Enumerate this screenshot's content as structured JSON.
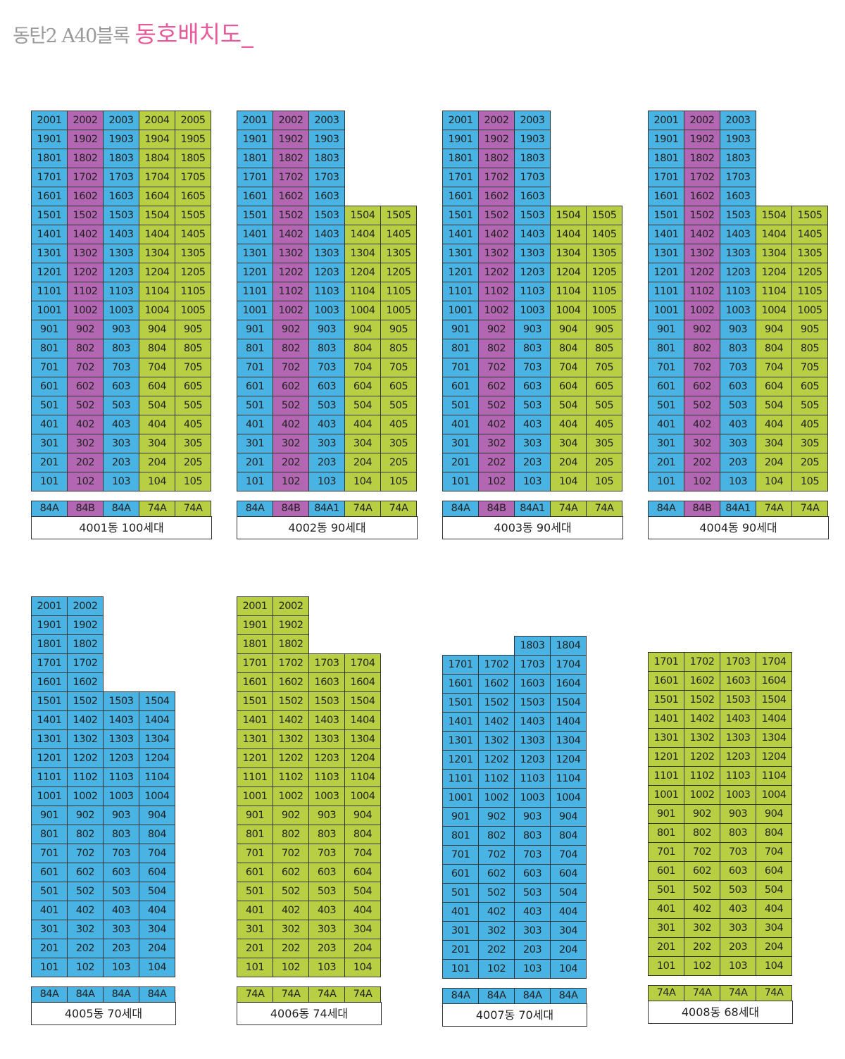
{
  "header": {
    "subtitle": "동탄2 A40블록",
    "title": "동호배치도_"
  },
  "colors": {
    "84A": "#49b3e3",
    "84B": "#b366b1",
    "84A1": "#49b3e3",
    "74A": "#b8cf44"
  },
  "buildings": [
    {
      "name": "4001동 100세대",
      "types": [
        "84A",
        "84B",
        "84A",
        "74A",
        "74A"
      ],
      "floors": [
        [
          "2001",
          "2002",
          "2003",
          "2004",
          "2005"
        ],
        [
          "1901",
          "1902",
          "1903",
          "1904",
          "1905"
        ],
        [
          "1801",
          "1802",
          "1803",
          "1804",
          "1805"
        ],
        [
          "1701",
          "1702",
          "1703",
          "1704",
          "1705"
        ],
        [
          "1601",
          "1602",
          "1603",
          "1604",
          "1605"
        ],
        [
          "1501",
          "1502",
          "1503",
          "1504",
          "1505"
        ],
        [
          "1401",
          "1402",
          "1403",
          "1404",
          "1405"
        ],
        [
          "1301",
          "1302",
          "1303",
          "1304",
          "1305"
        ],
        [
          "1201",
          "1202",
          "1203",
          "1204",
          "1205"
        ],
        [
          "1101",
          "1102",
          "1103",
          "1104",
          "1105"
        ],
        [
          "1001",
          "1002",
          "1003",
          "1004",
          "1005"
        ],
        [
          "901",
          "902",
          "903",
          "904",
          "905"
        ],
        [
          "801",
          "802",
          "803",
          "804",
          "805"
        ],
        [
          "701",
          "702",
          "703",
          "704",
          "705"
        ],
        [
          "601",
          "602",
          "603",
          "604",
          "605"
        ],
        [
          "501",
          "502",
          "503",
          "504",
          "505"
        ],
        [
          "401",
          "402",
          "403",
          "404",
          "405"
        ],
        [
          "301",
          "302",
          "303",
          "304",
          "305"
        ],
        [
          "201",
          "202",
          "203",
          "204",
          "205"
        ],
        [
          "101",
          "102",
          "103",
          "104",
          "105"
        ]
      ]
    },
    {
      "name": "4002동 90세대",
      "types": [
        "84A",
        "84B",
        "84A1",
        "74A",
        "74A"
      ],
      "floors": [
        [
          "2001",
          "2002",
          "2003",
          "",
          ""
        ],
        [
          "1901",
          "1902",
          "1903",
          "",
          ""
        ],
        [
          "1801",
          "1802",
          "1803",
          "",
          ""
        ],
        [
          "1701",
          "1702",
          "1703",
          "",
          ""
        ],
        [
          "1601",
          "1602",
          "1603",
          "",
          ""
        ],
        [
          "1501",
          "1502",
          "1503",
          "1504",
          "1505"
        ],
        [
          "1401",
          "1402",
          "1403",
          "1404",
          "1405"
        ],
        [
          "1301",
          "1302",
          "1303",
          "1304",
          "1305"
        ],
        [
          "1201",
          "1202",
          "1203",
          "1204",
          "1205"
        ],
        [
          "1101",
          "1102",
          "1103",
          "1104",
          "1105"
        ],
        [
          "1001",
          "1002",
          "1003",
          "1004",
          "1005"
        ],
        [
          "901",
          "902",
          "903",
          "904",
          "905"
        ],
        [
          "801",
          "802",
          "803",
          "804",
          "805"
        ],
        [
          "701",
          "702",
          "703",
          "704",
          "705"
        ],
        [
          "601",
          "602",
          "603",
          "604",
          "605"
        ],
        [
          "501",
          "502",
          "503",
          "504",
          "505"
        ],
        [
          "401",
          "402",
          "403",
          "404",
          "405"
        ],
        [
          "301",
          "302",
          "303",
          "304",
          "305"
        ],
        [
          "201",
          "202",
          "203",
          "204",
          "205"
        ],
        [
          "101",
          "102",
          "103",
          "104",
          "105"
        ]
      ]
    },
    {
      "name": "4003동 90세대",
      "types": [
        "84A",
        "84B",
        "84A1",
        "74A",
        "74A"
      ],
      "floors": [
        [
          "2001",
          "2002",
          "2003",
          "",
          ""
        ],
        [
          "1901",
          "1902",
          "1903",
          "",
          ""
        ],
        [
          "1801",
          "1802",
          "1803",
          "",
          ""
        ],
        [
          "1701",
          "1702",
          "1703",
          "",
          ""
        ],
        [
          "1601",
          "1602",
          "1603",
          "",
          ""
        ],
        [
          "1501",
          "1502",
          "1503",
          "1504",
          "1505"
        ],
        [
          "1401",
          "1402",
          "1403",
          "1404",
          "1405"
        ],
        [
          "1301",
          "1302",
          "1303",
          "1304",
          "1305"
        ],
        [
          "1201",
          "1202",
          "1203",
          "1204",
          "1205"
        ],
        [
          "1101",
          "1102",
          "1103",
          "1104",
          "1105"
        ],
        [
          "1001",
          "1002",
          "1003",
          "1004",
          "1005"
        ],
        [
          "901",
          "902",
          "903",
          "904",
          "905"
        ],
        [
          "801",
          "802",
          "803",
          "804",
          "805"
        ],
        [
          "701",
          "702",
          "703",
          "704",
          "705"
        ],
        [
          "601",
          "602",
          "603",
          "604",
          "605"
        ],
        [
          "501",
          "502",
          "503",
          "504",
          "505"
        ],
        [
          "401",
          "402",
          "403",
          "404",
          "405"
        ],
        [
          "301",
          "302",
          "303",
          "304",
          "305"
        ],
        [
          "201",
          "202",
          "203",
          "204",
          "205"
        ],
        [
          "101",
          "102",
          "103",
          "104",
          "105"
        ]
      ]
    },
    {
      "name": "4004동 90세대",
      "types": [
        "84A",
        "84B",
        "84A1",
        "74A",
        "74A"
      ],
      "floors": [
        [
          "2001",
          "2002",
          "2003",
          "",
          ""
        ],
        [
          "1901",
          "1902",
          "1903",
          "",
          ""
        ],
        [
          "1801",
          "1802",
          "1803",
          "",
          ""
        ],
        [
          "1701",
          "1702",
          "1703",
          "",
          ""
        ],
        [
          "1601",
          "1602",
          "1603",
          "",
          ""
        ],
        [
          "1501",
          "1502",
          "1503",
          "1504",
          "1505"
        ],
        [
          "1401",
          "1402",
          "1403",
          "1404",
          "1405"
        ],
        [
          "1301",
          "1302",
          "1303",
          "1304",
          "1305"
        ],
        [
          "1201",
          "1202",
          "1203",
          "1204",
          "1205"
        ],
        [
          "1101",
          "1102",
          "1103",
          "1104",
          "1105"
        ],
        [
          "1001",
          "1002",
          "1003",
          "1004",
          "1005"
        ],
        [
          "901",
          "902",
          "903",
          "904",
          "905"
        ],
        [
          "801",
          "802",
          "803",
          "804",
          "805"
        ],
        [
          "701",
          "702",
          "703",
          "704",
          "705"
        ],
        [
          "601",
          "602",
          "603",
          "604",
          "605"
        ],
        [
          "501",
          "502",
          "503",
          "504",
          "505"
        ],
        [
          "401",
          "402",
          "403",
          "404",
          "405"
        ],
        [
          "301",
          "302",
          "303",
          "304",
          "305"
        ],
        [
          "201",
          "202",
          "203",
          "204",
          "205"
        ],
        [
          "101",
          "102",
          "103",
          "104",
          "105"
        ]
      ]
    },
    {
      "name": "4005동 70세대",
      "types": [
        "84A",
        "84A",
        "84A",
        "84A"
      ],
      "floors": [
        [
          "2001",
          "2002",
          "",
          ""
        ],
        [
          "1901",
          "1902",
          "",
          ""
        ],
        [
          "1801",
          "1802",
          "",
          ""
        ],
        [
          "1701",
          "1702",
          "",
          ""
        ],
        [
          "1601",
          "1602",
          "",
          ""
        ],
        [
          "1501",
          "1502",
          "1503",
          "1504"
        ],
        [
          "1401",
          "1402",
          "1403",
          "1404"
        ],
        [
          "1301",
          "1302",
          "1303",
          "1304"
        ],
        [
          "1201",
          "1202",
          "1203",
          "1204"
        ],
        [
          "1101",
          "1102",
          "1103",
          "1104"
        ],
        [
          "1001",
          "1002",
          "1003",
          "1004"
        ],
        [
          "901",
          "902",
          "903",
          "904"
        ],
        [
          "801",
          "802",
          "803",
          "804"
        ],
        [
          "701",
          "702",
          "703",
          "704"
        ],
        [
          "601",
          "602",
          "603",
          "604"
        ],
        [
          "501",
          "502",
          "503",
          "504"
        ],
        [
          "401",
          "402",
          "403",
          "404"
        ],
        [
          "301",
          "302",
          "303",
          "304"
        ],
        [
          "201",
          "202",
          "203",
          "204"
        ],
        [
          "101",
          "102",
          "103",
          "104"
        ]
      ]
    },
    {
      "name": "4006동 74세대",
      "types": [
        "74A",
        "74A",
        "74A",
        "74A"
      ],
      "floors": [
        [
          "2001",
          "2002",
          "",
          ""
        ],
        [
          "1901",
          "1902",
          "",
          ""
        ],
        [
          "1801",
          "1802",
          "",
          ""
        ],
        [
          "1701",
          "1702",
          "1703",
          "1704"
        ],
        [
          "1601",
          "1602",
          "1603",
          "1604"
        ],
        [
          "1501",
          "1502",
          "1503",
          "1504"
        ],
        [
          "1401",
          "1402",
          "1403",
          "1404"
        ],
        [
          "1301",
          "1302",
          "1303",
          "1304"
        ],
        [
          "1201",
          "1202",
          "1203",
          "1204"
        ],
        [
          "1101",
          "1102",
          "1103",
          "1104"
        ],
        [
          "1001",
          "1002",
          "1003",
          "1004"
        ],
        [
          "901",
          "902",
          "903",
          "904"
        ],
        [
          "801",
          "802",
          "803",
          "804"
        ],
        [
          "701",
          "702",
          "703",
          "704"
        ],
        [
          "601",
          "602",
          "603",
          "604"
        ],
        [
          "501",
          "502",
          "503",
          "504"
        ],
        [
          "401",
          "402",
          "403",
          "404"
        ],
        [
          "301",
          "302",
          "303",
          "304"
        ],
        [
          "201",
          "202",
          "203",
          "204"
        ],
        [
          "101",
          "102",
          "103",
          "104"
        ]
      ]
    },
    {
      "name": "4007동 70세대",
      "types": [
        "84A",
        "84A",
        "84A",
        "84A"
      ],
      "floors": [
        [
          "",
          "",
          "1803",
          "1804"
        ],
        [
          "1701",
          "1702",
          "1703",
          "1704"
        ],
        [
          "1601",
          "1602",
          "1603",
          "1604"
        ],
        [
          "1501",
          "1502",
          "1503",
          "1504"
        ],
        [
          "1401",
          "1402",
          "1403",
          "1404"
        ],
        [
          "1301",
          "1302",
          "1303",
          "1304"
        ],
        [
          "1201",
          "1202",
          "1203",
          "1204"
        ],
        [
          "1101",
          "1102",
          "1103",
          "1104"
        ],
        [
          "1001",
          "1002",
          "1003",
          "1004"
        ],
        [
          "901",
          "902",
          "903",
          "904"
        ],
        [
          "801",
          "802",
          "803",
          "804"
        ],
        [
          "701",
          "702",
          "703",
          "704"
        ],
        [
          "601",
          "602",
          "603",
          "604"
        ],
        [
          "501",
          "502",
          "503",
          "504"
        ],
        [
          "401",
          "402",
          "403",
          "404"
        ],
        [
          "301",
          "302",
          "303",
          "304"
        ],
        [
          "201",
          "202",
          "203",
          "204"
        ],
        [
          "101",
          "102",
          "103",
          "104"
        ]
      ]
    },
    {
      "name": "4008동 68세대",
      "types": [
        "74A",
        "74A",
        "74A",
        "74A"
      ],
      "floors": [
        [
          "1701",
          "1702",
          "1703",
          "1704"
        ],
        [
          "1601",
          "1602",
          "1603",
          "1604"
        ],
        [
          "1501",
          "1502",
          "1503",
          "1504"
        ],
        [
          "1401",
          "1402",
          "1403",
          "1404"
        ],
        [
          "1301",
          "1302",
          "1303",
          "1304"
        ],
        [
          "1201",
          "1202",
          "1203",
          "1204"
        ],
        [
          "1101",
          "1102",
          "1103",
          "1104"
        ],
        [
          "1001",
          "1002",
          "1003",
          "1004"
        ],
        [
          "901",
          "902",
          "903",
          "904"
        ],
        [
          "801",
          "802",
          "803",
          "804"
        ],
        [
          "701",
          "702",
          "703",
          "704"
        ],
        [
          "601",
          "602",
          "603",
          "604"
        ],
        [
          "501",
          "502",
          "503",
          "504"
        ],
        [
          "401",
          "402",
          "403",
          "404"
        ],
        [
          "301",
          "302",
          "303",
          "304"
        ],
        [
          "201",
          "202",
          "203",
          "204"
        ],
        [
          "101",
          "102",
          "103",
          "104"
        ]
      ]
    }
  ]
}
